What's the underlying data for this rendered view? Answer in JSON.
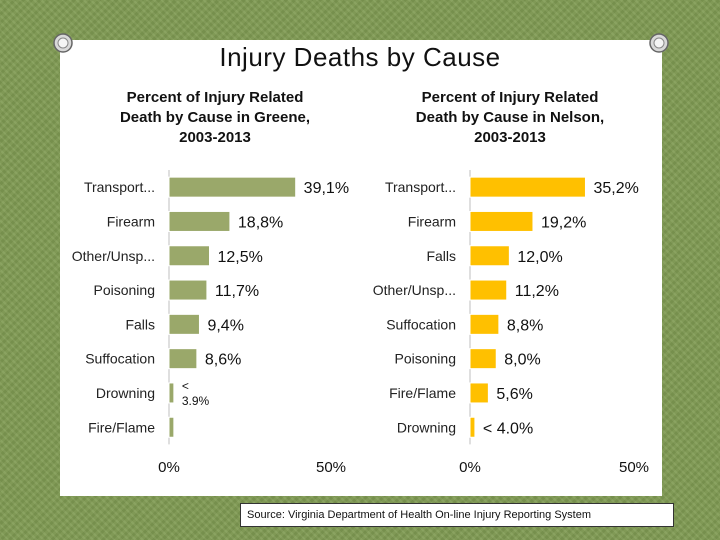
{
  "title": "Injury Deaths by Cause",
  "source": "Source: Virginia Department of Health On-line Injury Reporting System",
  "chart_data": [
    {
      "type": "bar",
      "orientation": "horizontal",
      "title": "Percent of Injury Related\nDeath by Cause in Greene,\n2003-2013",
      "categories": [
        "Transport...",
        "Firearm",
        "Other/Unsp...",
        "Poisoning",
        "Falls",
        "Suffocation",
        "Drowning",
        "Fire/Flame"
      ],
      "values": [
        39.1,
        18.8,
        12.5,
        11.7,
        9.4,
        8.6,
        1.5,
        1.5
      ],
      "labels": [
        "39,1%",
        "18,8%",
        "12,5%",
        "11,7%",
        "9,4%",
        "8,6%",
        "<\n3.9%",
        ""
      ],
      "xlim": [
        0,
        50
      ],
      "xticks": [
        "0%",
        "50%"
      ],
      "color": "#9aa86a"
    },
    {
      "type": "bar",
      "orientation": "horizontal",
      "title": "Percent of Injury Related\nDeath by Cause in Nelson,\n2003-2013",
      "categories": [
        "Transport...",
        "Firearm",
        "Falls",
        "Other/Unsp...",
        "Suffocation",
        "Poisoning",
        "Fire/Flame",
        "Drowning"
      ],
      "values": [
        35.2,
        19.2,
        12.0,
        11.2,
        8.8,
        8.0,
        5.6,
        1.5
      ],
      "labels": [
        "35,2%",
        "19,2%",
        "12,0%",
        "11,2%",
        "8,8%",
        "8,0%",
        "5,6%",
        "< 4.0%"
      ],
      "xlim": [
        0,
        50
      ],
      "xticks": [
        "0%",
        "50%"
      ],
      "color": "#ffc000"
    }
  ]
}
